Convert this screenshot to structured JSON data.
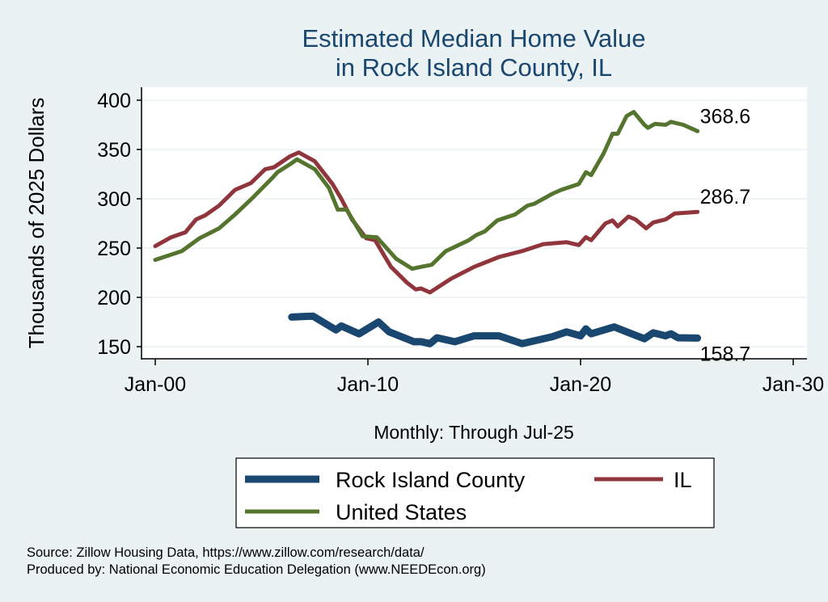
{
  "chart_data": {
    "type": "line",
    "title": [
      "Estimated Median Home Value",
      "in Rock Island County, IL"
    ],
    "xlabel": "Monthly: Through Jul-25",
    "ylabel": "Thousands of 2025 Dollars",
    "xlim": [
      "2000-01",
      "2030-01"
    ],
    "ylim": [
      150,
      400
    ],
    "xticks": [
      {
        "date": "2000-01",
        "label": "Jan-00"
      },
      {
        "date": "2010-01",
        "label": "Jan-10"
      },
      {
        "date": "2020-01",
        "label": "Jan-20"
      },
      {
        "date": "2030-01",
        "label": "Jan-30"
      }
    ],
    "yticks": [
      150,
      200,
      250,
      300,
      350,
      400
    ],
    "grid": "horizontal",
    "legend_position": "bottom",
    "series": [
      {
        "name": "Rock Island County",
        "color": "#1a476f",
        "end_label": "158.7",
        "points": [
          [
            "2006-06",
            180
          ],
          [
            "2007-06",
            181
          ],
          [
            "2008-07",
            167
          ],
          [
            "2008-10",
            171
          ],
          [
            "2009-08",
            163
          ],
          [
            "2010-07",
            175
          ],
          [
            "2011-01",
            165
          ],
          [
            "2012-03",
            155
          ],
          [
            "2012-07",
            155
          ],
          [
            "2012-12",
            153
          ],
          [
            "2013-04",
            159
          ],
          [
            "2014-02",
            155
          ],
          [
            "2015-01",
            161
          ],
          [
            "2016-03",
            161
          ],
          [
            "2017-04",
            153
          ],
          [
            "2018-09",
            160
          ],
          [
            "2019-05",
            165
          ],
          [
            "2020-01",
            161
          ],
          [
            "2020-04",
            168
          ],
          [
            "2020-07",
            163
          ],
          [
            "2021-08",
            170
          ],
          [
            "2022-03",
            165
          ],
          [
            "2023-01",
            158
          ],
          [
            "2023-06",
            164
          ],
          [
            "2024-01",
            161
          ],
          [
            "2024-04",
            163
          ],
          [
            "2024-08",
            159
          ],
          [
            "2025-07",
            158.7
          ]
        ]
      },
      {
        "name": "IL",
        "color": "#90353b",
        "end_label": "286.7",
        "points": [
          [
            "2000-01",
            252
          ],
          [
            "2000-10",
            261
          ],
          [
            "2001-06",
            266
          ],
          [
            "2001-12",
            279
          ],
          [
            "2002-05",
            283
          ],
          [
            "2003-01",
            293
          ],
          [
            "2003-10",
            309
          ],
          [
            "2004-07",
            316
          ],
          [
            "2005-03",
            330
          ],
          [
            "2005-08",
            332
          ],
          [
            "2006-05",
            343
          ],
          [
            "2006-10",
            347
          ],
          [
            "2007-07",
            338
          ],
          [
            "2008-05",
            315
          ],
          [
            "2008-10",
            300
          ],
          [
            "2009-04",
            279
          ],
          [
            "2009-12",
            260
          ],
          [
            "2010-05",
            258
          ],
          [
            "2011-02",
            231
          ],
          [
            "2011-11",
            215
          ],
          [
            "2012-04",
            208
          ],
          [
            "2012-07",
            209
          ],
          [
            "2012-12",
            205
          ],
          [
            "2013-12",
            219
          ],
          [
            "2015-01",
            231
          ],
          [
            "2016-03",
            241
          ],
          [
            "2017-04",
            247
          ],
          [
            "2018-04",
            254
          ],
          [
            "2019-05",
            256
          ],
          [
            "2019-12",
            253
          ],
          [
            "2020-04",
            261
          ],
          [
            "2020-07",
            258
          ],
          [
            "2021-03",
            275
          ],
          [
            "2021-07",
            278
          ],
          [
            "2021-10",
            272
          ],
          [
            "2022-04",
            282
          ],
          [
            "2022-08",
            279
          ],
          [
            "2023-02",
            270
          ],
          [
            "2023-06",
            276
          ],
          [
            "2024-01",
            279
          ],
          [
            "2024-06",
            285
          ],
          [
            "2025-07",
            286.7
          ]
        ]
      },
      {
        "name": "United States",
        "color": "#55752f",
        "end_label": "368.6",
        "points": [
          [
            "2000-01",
            238
          ],
          [
            "2001-04",
            247
          ],
          [
            "2002-02",
            260
          ],
          [
            "2003-01",
            270
          ],
          [
            "2003-10",
            284
          ],
          [
            "2004-08",
            301
          ],
          [
            "2005-07",
            321
          ],
          [
            "2005-10",
            327
          ],
          [
            "2006-05",
            335
          ],
          [
            "2006-09",
            340
          ],
          [
            "2007-07",
            330
          ],
          [
            "2008-03",
            311
          ],
          [
            "2008-08",
            289
          ],
          [
            "2009-01",
            289
          ],
          [
            "2009-10",
            262
          ],
          [
            "2010-06",
            261
          ],
          [
            "2011-05",
            239
          ],
          [
            "2012-02",
            229
          ],
          [
            "2012-07",
            231
          ],
          [
            "2013-01",
            233
          ],
          [
            "2013-09",
            247
          ],
          [
            "2014-10",
            258
          ],
          [
            "2015-02",
            263
          ],
          [
            "2015-07",
            267
          ],
          [
            "2016-02",
            278
          ],
          [
            "2016-12",
            284
          ],
          [
            "2017-07",
            293
          ],
          [
            "2017-11",
            295
          ],
          [
            "2018-09",
            305
          ],
          [
            "2019-02",
            309
          ],
          [
            "2019-12",
            315
          ],
          [
            "2020-02",
            321
          ],
          [
            "2020-04",
            327
          ],
          [
            "2020-07",
            324
          ],
          [
            "2021-02",
            346
          ],
          [
            "2021-07",
            366
          ],
          [
            "2021-10",
            366
          ],
          [
            "2022-03",
            384
          ],
          [
            "2022-07",
            388
          ],
          [
            "2023-01",
            375
          ],
          [
            "2023-03",
            372
          ],
          [
            "2023-07",
            376
          ],
          [
            "2024-01",
            375
          ],
          [
            "2024-04",
            378
          ],
          [
            "2024-11",
            375
          ],
          [
            "2025-07",
            368.6
          ]
        ]
      }
    ]
  },
  "footer": {
    "source": "Source: Zillow Housing Data, https://www.zillow.com/research/data/",
    "produced": "Produced by: National Economic Education Delegation (www.NEEDEcon.org)"
  },
  "colors": {
    "background": "#eaf2f3",
    "plot": "#ffffff",
    "title": "#1a476f"
  }
}
